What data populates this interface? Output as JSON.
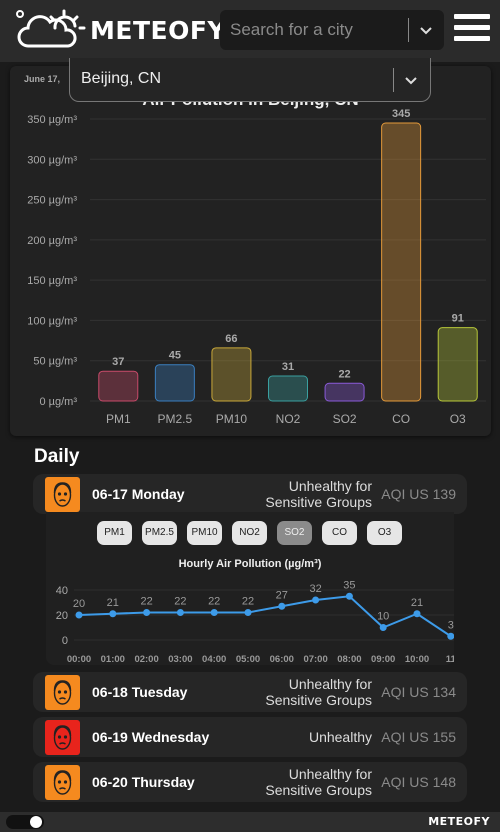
{
  "app": {
    "name": "METEOFY",
    "search_placeholder": "Search for a city",
    "footer_name": "METEOFY"
  },
  "city_select": {
    "value": "Beijing, CN"
  },
  "chart_data": {
    "type": "bar",
    "date_label": "June 17,",
    "title": "Air Pollution in Beijing, CN",
    "categories": [
      "PM1",
      "PM2.5",
      "PM10",
      "NO2",
      "SO2",
      "CO",
      "O3"
    ],
    "values": [
      37,
      45,
      66,
      31,
      22,
      345,
      91
    ],
    "colors": [
      "#c84a6a",
      "#3a7fc0",
      "#c9a83a",
      "#3aa0a0",
      "#8a5ad8",
      "#e49a3a",
      "#b8c83a"
    ],
    "yticks": [
      "0 µg/m³",
      "50 µg/m³",
      "100 µg/m³",
      "150 µg/m³",
      "200 µg/m³",
      "250 µg/m³",
      "300 µg/m³",
      "350 µg/m³"
    ],
    "ylim": [
      0,
      350
    ],
    "grid": true
  },
  "daily": {
    "title": "Daily",
    "days": [
      {
        "label": "06-17 Monday",
        "category_lines": [
          "Unhealthy for",
          "Sensitive Groups"
        ],
        "aqi": "AQI US 139",
        "color": "#f58a1f"
      },
      {
        "label": "06-18 Tuesday",
        "category_lines": [
          "Unhealthy for",
          "Sensitive Groups"
        ],
        "aqi": "AQI US 134",
        "color": "#f58a1f"
      },
      {
        "label": "06-19 Wednesday",
        "category_lines": [
          "Unhealthy"
        ],
        "aqi": "AQI US 155",
        "color": "#e8241c"
      },
      {
        "label": "06-20 Thursday",
        "category_lines": [
          "Unhealthy for",
          "Sensitive Groups"
        ],
        "aqi": "AQI US 148",
        "color": "#f58a1f"
      }
    ],
    "pollutant_chips": [
      "PM1",
      "PM2.5",
      "PM10",
      "NO2",
      "SO2",
      "CO",
      "O3"
    ],
    "active_chip": "SO2",
    "hourly": {
      "title": "Hourly Air Pollution (µg/m³)",
      "x": [
        "00:00",
        "01:00",
        "02:00",
        "03:00",
        "04:00",
        "05:00",
        "06:00",
        "07:00",
        "08:00",
        "09:00",
        "10:00",
        "11"
      ],
      "values": [
        20,
        21,
        22,
        22,
        22,
        22,
        27,
        32,
        35,
        10,
        21,
        3
      ],
      "yticks": [
        "0",
        "20",
        "40"
      ],
      "ylim": [
        0,
        40
      ],
      "line_color": "#3d9be9"
    }
  }
}
